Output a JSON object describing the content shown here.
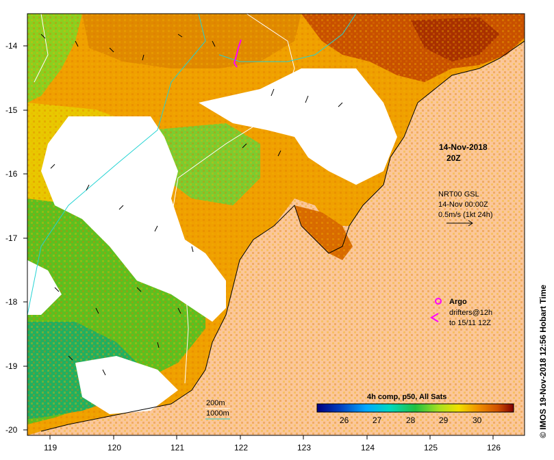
{
  "map": {
    "timestamp_line1": "14-Nov-2018",
    "timestamp_line2": "20Z",
    "current_source": "NRT00 GSL",
    "current_time": "14-Nov 00:00Z",
    "current_scale": "0.5m/s (1kt 24h)",
    "argo_label": "Argo",
    "drifters_line1": "drifters@12h",
    "drifters_line2": "to 15/11 12Z",
    "isobath_200": "200m",
    "isobath_1000": "1000m",
    "colorbar_title": "4h comp, p50, All Sats",
    "colorbar_ticks": [
      "26",
      "27",
      "28",
      "29",
      "30"
    ],
    "credit": "© IMOS 19-Nov-2018 12:56 Hobart Time",
    "lat_ticks": [
      "-14",
      "-15",
      "-16",
      "-17",
      "-18",
      "-19",
      "-20"
    ],
    "lon_ticks": [
      "119",
      "120",
      "121",
      "122",
      "123",
      "124",
      "125",
      "126"
    ],
    "colors": {
      "land": "#fbc79a",
      "cloud": "#ffffff",
      "isobath_200": "#ffffff",
      "isobath_1000": "#22d3d3",
      "drifters": "#ff00ff"
    }
  }
}
